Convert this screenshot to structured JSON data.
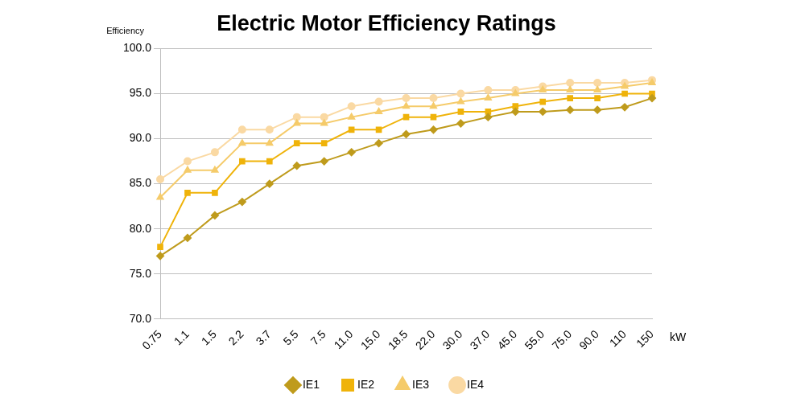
{
  "chart_data": {
    "type": "line",
    "title": "Electric Motor Efficiency Ratings",
    "y_label": "Efficiency",
    "x_label": "kW",
    "categories": [
      "0.75",
      "1.1",
      "1.5",
      "2.2",
      "3.7",
      "5.5",
      "7.5",
      "11.0",
      "15.0",
      "18.5",
      "22.0",
      "30.0",
      "37.0",
      "45.0",
      "55.0",
      "75.0",
      "90.0",
      "110",
      "150"
    ],
    "series": [
      {
        "name": "IE1",
        "color": "#bf9b1c",
        "marker": "diamond",
        "values": [
          77.0,
          79.0,
          81.5,
          83.0,
          85.0,
          87.0,
          87.5,
          88.5,
          89.5,
          90.5,
          91.0,
          91.7,
          92.4,
          93.0,
          93.0,
          93.2,
          93.2,
          93.5,
          94.5
        ]
      },
      {
        "name": "IE2",
        "color": "#efb30a",
        "marker": "square",
        "values": [
          78.0,
          84.0,
          84.0,
          87.5,
          87.5,
          89.5,
          89.5,
          91.0,
          91.0,
          92.4,
          92.4,
          93.0,
          93.0,
          93.6,
          94.1,
          94.5,
          94.5,
          95.0,
          95.0
        ]
      },
      {
        "name": "IE3",
        "color": "#f5cb6a",
        "marker": "triangle",
        "values": [
          83.5,
          86.5,
          86.5,
          89.5,
          89.5,
          91.7,
          91.7,
          92.4,
          93.0,
          93.6,
          93.6,
          94.1,
          94.5,
          95.0,
          95.4,
          95.4,
          95.4,
          95.8,
          96.2
        ]
      },
      {
        "name": "IE4",
        "color": "#fad9a3",
        "marker": "circle",
        "values": [
          85.5,
          87.5,
          88.5,
          91.0,
          91.0,
          92.4,
          92.4,
          93.6,
          94.1,
          94.5,
          94.5,
          95.0,
          95.4,
          95.4,
          95.8,
          96.2,
          96.2,
          96.2,
          96.5
        ]
      }
    ],
    "ylim": [
      70,
      100
    ],
    "yticks": [
      {
        "value": 70,
        "label": "70.0"
      },
      {
        "value": 75,
        "label": "75.0"
      },
      {
        "value": 80,
        "label": "80.0"
      },
      {
        "value": 85,
        "label": "85.0"
      },
      {
        "value": 90,
        "label": "90.0"
      },
      {
        "value": 95,
        "label": "95.0"
      },
      {
        "value": 100,
        "label": "100.0"
      }
    ],
    "grid": true,
    "legend": "bottom"
  }
}
